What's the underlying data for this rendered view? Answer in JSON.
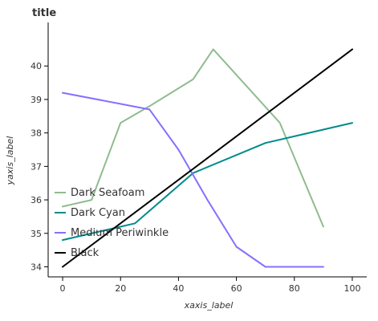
{
  "chart_data": {
    "type": "line",
    "title": "title",
    "xlabel": "xaxis_label",
    "ylabel": "yaxis_label",
    "xlim": [
      -5,
      105
    ],
    "ylim": [
      33.7,
      41.3
    ],
    "xticks": [
      0,
      20,
      40,
      60,
      80,
      100
    ],
    "yticks": [
      34,
      35,
      36,
      37,
      38,
      39,
      40
    ],
    "grid": false,
    "legend_position": "center-left",
    "series": [
      {
        "name": "Dark Seafoam",
        "color": "#8fbc8f",
        "x": [
          0,
          10,
          20,
          30,
          45,
          52,
          75,
          90
        ],
        "y": [
          35.8,
          36.0,
          38.3,
          38.8,
          39.6,
          40.5,
          38.3,
          35.2
        ]
      },
      {
        "name": "Dark Cyan",
        "color": "#008b8b",
        "x": [
          0,
          15,
          25,
          45,
          70,
          100
        ],
        "y": [
          34.8,
          35.1,
          35.3,
          36.8,
          37.7,
          38.3
        ]
      },
      {
        "name": "Medium Periwinkle",
        "color": "#8470ff",
        "x": [
          0,
          30,
          40,
          50,
          60,
          70,
          80,
          90
        ],
        "y": [
          39.2,
          38.7,
          37.5,
          36.0,
          34.6,
          34.0,
          34.0,
          34.0
        ]
      },
      {
        "name": "Black",
        "color": "#000000",
        "x": [
          0,
          100
        ],
        "y": [
          34.0,
          40.5
        ]
      }
    ]
  }
}
